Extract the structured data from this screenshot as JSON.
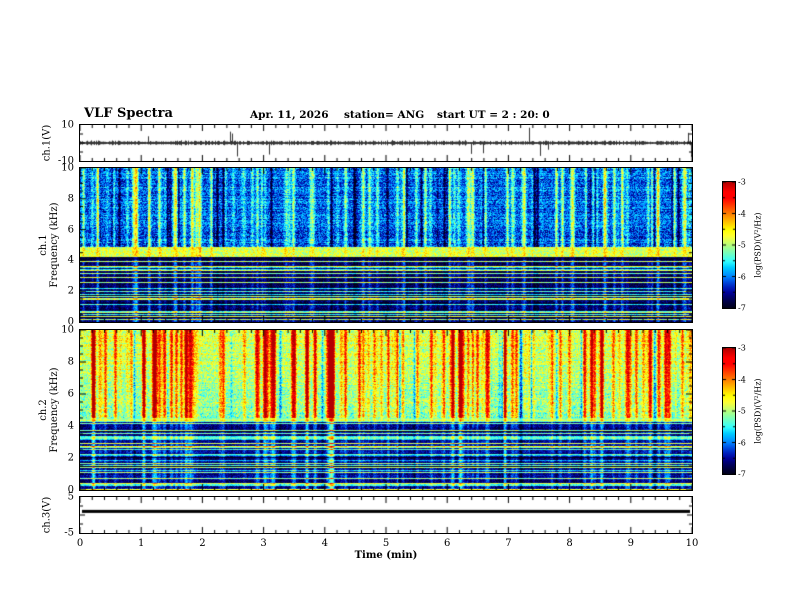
{
  "header": {
    "title": "VLF Spectra",
    "date": "Apr. 11, 2026",
    "station": "station= ANG",
    "start_ut": "start UT =  2 : 20: 0"
  },
  "xaxis": {
    "label": "Time (min)",
    "min": 0,
    "max": 10,
    "ticks": [
      "0",
      "1",
      "2",
      "3",
      "4",
      "5",
      "6",
      "7",
      "8",
      "9",
      "10"
    ]
  },
  "panels": {
    "ch1_wave": {
      "ylabel": "ch.1(V)",
      "ymin": -10,
      "ymax": 10,
      "yticks": [
        "10",
        "-10"
      ]
    },
    "spec1": {
      "ylabel_line1": "ch.1",
      "ylabel_line2": "Frequency (kHz)",
      "ymin": 0,
      "ymax": 10,
      "yticks": [
        "0",
        "2",
        "4",
        "6",
        "8",
        "10"
      ]
    },
    "spec2": {
      "ylabel_line1": "ch.2",
      "ylabel_line2": "Frequency (kHz)",
      "ymin": 0,
      "ymax": 10,
      "yticks": [
        "0",
        "2",
        "4",
        "6",
        "8",
        "10"
      ]
    },
    "ch3": {
      "ylabel": "ch.3(V)",
      "ymin": -5,
      "ymax": 5,
      "yticks": [
        "5",
        "-5"
      ],
      "value": 1
    }
  },
  "colorbar": {
    "label": "log(PSD)(V²/Hz)",
    "min": -7,
    "max": -3,
    "ticks": [
      "-3",
      "-4",
      "-5",
      "-6",
      "-7"
    ]
  },
  "chart_data": [
    {
      "type": "line",
      "name": "ch1_waveform",
      "ylabel": "ch.1(V)",
      "xlim": [
        0,
        10
      ],
      "ylim": [
        -10,
        10
      ],
      "description": "Dense noisy voltage trace centered near 0 V (roughly ±1 V band) with sporadic impulsive spikes reaching about ±8 V throughout the 10 minute record."
    },
    {
      "type": "heatmap",
      "name": "ch1_spectrogram",
      "xlabel": "Time (min)",
      "ylabel": "Frequency (kHz)",
      "xlim": [
        0,
        10
      ],
      "ylim": [
        0,
        10
      ],
      "zlabel": "log(PSD)(V²/Hz)",
      "zlim": [
        -7,
        -3
      ],
      "features": [
        "blue background (~ -6) above ~5 kHz crossed by dense narrow vertical broadband striations (green/yellow, ~ -4.5 to -4) and occasional near-black dropout columns",
        "continuous bright cyan/green band near 4.2-4.8 kHz (~ -4.5 to -5)",
        "below ~4 kHz dark blue/near-black background (~ -6.8) with many narrow horizontal interference lines (cyan/green, ~ -5 to -5.5)"
      ]
    },
    {
      "type": "heatmap",
      "name": "ch2_spectrogram",
      "xlabel": "Time (min)",
      "ylabel": "Frequency (kHz)",
      "xlim": [
        0,
        10
      ],
      "ylim": [
        0,
        10
      ],
      "zlabel": "log(PSD)(V²/Hz)",
      "zlim": [
        -7,
        -3
      ],
      "features": [
        "green/yellow background (~ -5) above ~4.5 kHz, brightest near 8-10 kHz, with dense vertical striations reaching -3.5 (orange/red) and occasional dark dropout columns",
        "below ~4 kHz darker blue/black background with numerous horizontal interference lines (cyan/green, ~ -5)"
      ]
    },
    {
      "type": "line",
      "name": "ch3_trace",
      "ylabel": "ch.3(V)",
      "xlim": [
        0,
        10
      ],
      "ylim": [
        -5,
        5
      ],
      "description": "Flat constant trace near +1 V for the entire record (thick black horizontal line)."
    }
  ]
}
